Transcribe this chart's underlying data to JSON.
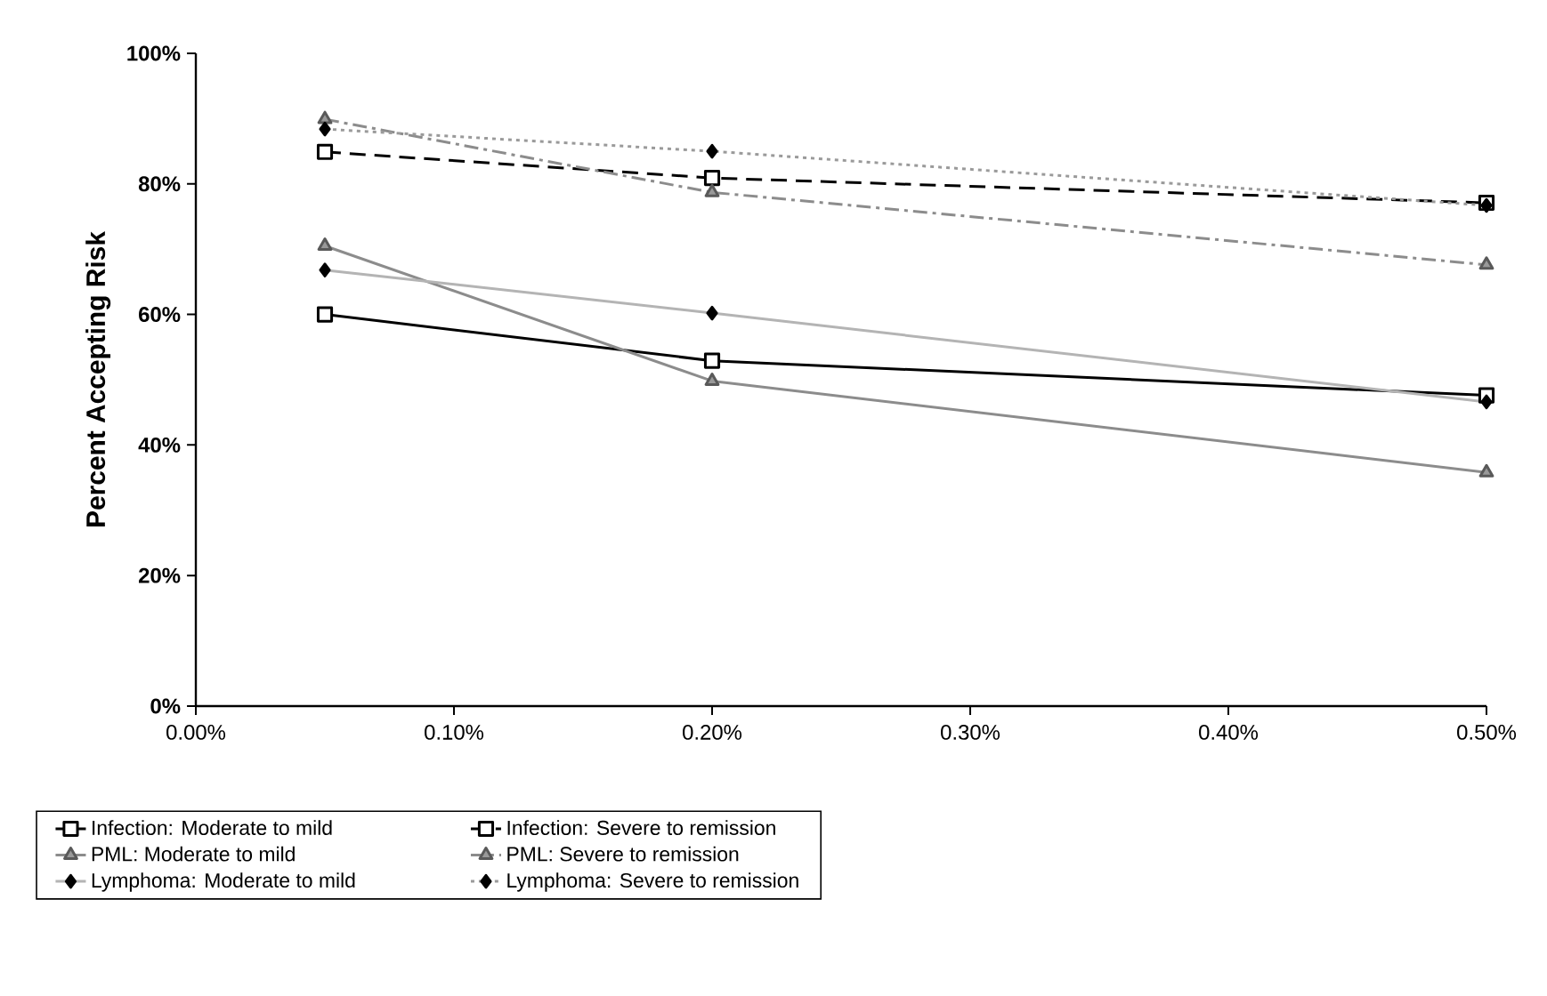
{
  "chart_data": {
    "type": "line",
    "ylabel": "Percent Accepting Risk",
    "x": [
      0.05,
      0.2,
      0.5
    ],
    "xlim": [
      0,
      0.5
    ],
    "ylim": [
      0,
      100
    ],
    "xticks": [
      {
        "value": 0,
        "label": "0.00%"
      },
      {
        "value": 0.1,
        "label": "0.10%"
      },
      {
        "value": 0.2,
        "label": "0.20%"
      },
      {
        "value": 0.3,
        "label": "0.30%"
      },
      {
        "value": 0.4,
        "label": "0.40%"
      },
      {
        "value": 0.5,
        "label": "0.50%"
      }
    ],
    "yticks": [
      {
        "value": 0,
        "label": "0%"
      },
      {
        "value": 20,
        "label": "20%"
      },
      {
        "value": 40,
        "label": "40%"
      },
      {
        "value": 60,
        "label": "60%"
      },
      {
        "value": 80,
        "label": "80%"
      },
      {
        "value": 100,
        "label": "100%"
      }
    ],
    "grid": false,
    "legend": "bottom",
    "series": [
      {
        "name": "Infection: Moderate to mild",
        "color": "#000000",
        "marker": "square",
        "line_style": "solid",
        "values": [
          60.0,
          52.9,
          47.6
        ]
      },
      {
        "name": "Infection: Severe to remission",
        "color": "#000000",
        "marker": "square",
        "line_style": "dashed",
        "values": [
          84.9,
          80.9,
          77.1
        ]
      },
      {
        "name": "PML: Moderate to mild",
        "color": "#8c8c8c",
        "marker": "triangle",
        "line_style": "solid",
        "values": [
          70.5,
          49.8,
          35.8
        ]
      },
      {
        "name": "PML: Severe to remission",
        "color": "#8c8c8c",
        "marker": "triangle",
        "line_style": "dashdot",
        "values": [
          89.9,
          78.7,
          67.6
        ]
      },
      {
        "name": "Lymphoma: Moderate to mild",
        "color": "#b4b4b4",
        "marker": "diamond",
        "line_style": "solid",
        "values": [
          66.8,
          60.2,
          46.6
        ]
      },
      {
        "name": "Lymphoma: Severe to remission",
        "color": "#9a9a9a",
        "marker": "diamond",
        "line_style": "dotted",
        "values": [
          88.4,
          85.0,
          76.7
        ]
      }
    ]
  }
}
